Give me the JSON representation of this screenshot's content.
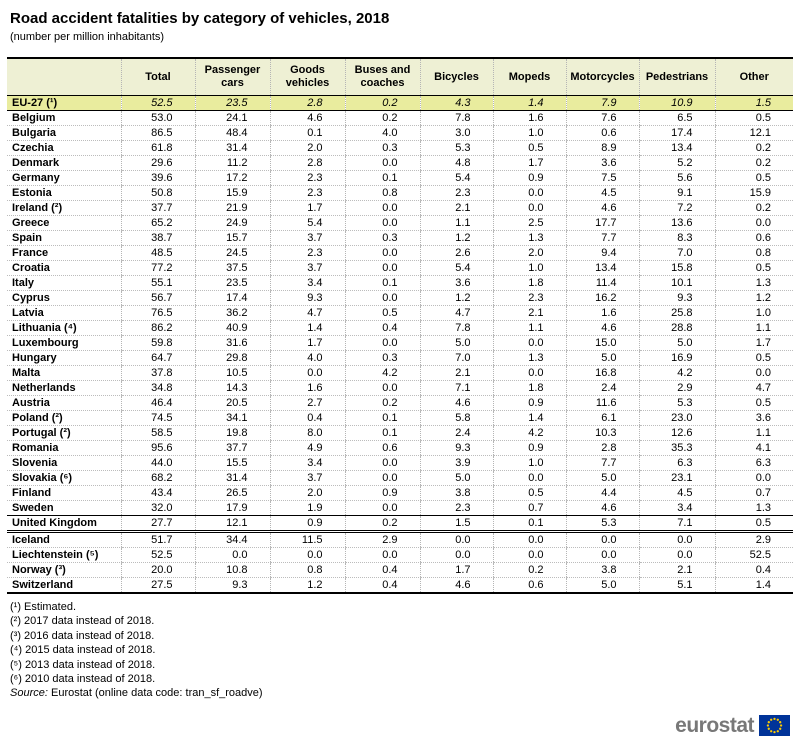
{
  "title": "Road accident fatalities by category of vehicles, 2018",
  "subtitle": "(number per million inhabitants)",
  "chart_data": {
    "type": "table",
    "title": "Road accident fatalities by category of vehicles, 2018",
    "unit": "number per million inhabitants",
    "columns": [
      "Total",
      "Passenger cars",
      "Goods vehicles",
      "Buses and coaches",
      "Bicycles",
      "Mopeds",
      "Motorcycles",
      "Pedestrians",
      "Other"
    ],
    "rows": [
      {
        "name": "EU-27 (¹)",
        "group": "eu27",
        "values": [
          "52.5",
          "23.5",
          "2.8",
          "0.2",
          "4.3",
          "1.4",
          "7.9",
          "10.9",
          "1.5"
        ]
      },
      {
        "name": "Belgium",
        "group": "member",
        "values": [
          "53.0",
          "24.1",
          "4.6",
          "0.2",
          "7.8",
          "1.6",
          "7.6",
          "6.5",
          "0.5"
        ]
      },
      {
        "name": "Bulgaria",
        "group": "member",
        "values": [
          "86.5",
          "48.4",
          "0.1",
          "4.0",
          "3.0",
          "1.0",
          "0.6",
          "17.4",
          "12.1"
        ]
      },
      {
        "name": "Czechia",
        "group": "member",
        "values": [
          "61.8",
          "31.4",
          "2.0",
          "0.3",
          "5.3",
          "0.5",
          "8.9",
          "13.4",
          "0.2"
        ]
      },
      {
        "name": "Denmark",
        "group": "member",
        "values": [
          "29.6",
          "11.2",
          "2.8",
          "0.0",
          "4.8",
          "1.7",
          "3.6",
          "5.2",
          "0.2"
        ]
      },
      {
        "name": "Germany",
        "group": "member",
        "values": [
          "39.6",
          "17.2",
          "2.3",
          "0.1",
          "5.4",
          "0.9",
          "7.5",
          "5.6",
          "0.5"
        ]
      },
      {
        "name": "Estonia",
        "group": "member",
        "values": [
          "50.8",
          "15.9",
          "2.3",
          "0.8",
          "2.3",
          "0.0",
          "4.5",
          "9.1",
          "15.9"
        ]
      },
      {
        "name": "Ireland (²)",
        "group": "member",
        "values": [
          "37.7",
          "21.9",
          "1.7",
          "0.0",
          "2.1",
          "0.0",
          "4.6",
          "7.2",
          "0.2"
        ]
      },
      {
        "name": "Greece",
        "group": "member",
        "values": [
          "65.2",
          "24.9",
          "5.4",
          "0.0",
          "1.1",
          "2.5",
          "17.7",
          "13.6",
          "0.0"
        ]
      },
      {
        "name": "Spain",
        "group": "member",
        "values": [
          "38.7",
          "15.7",
          "3.7",
          "0.3",
          "1.2",
          "1.3",
          "7.7",
          "8.3",
          "0.6"
        ]
      },
      {
        "name": "France",
        "group": "member",
        "values": [
          "48.5",
          "24.5",
          "2.3",
          "0.0",
          "2.6",
          "2.0",
          "9.4",
          "7.0",
          "0.8"
        ]
      },
      {
        "name": "Croatia",
        "group": "member",
        "values": [
          "77.2",
          "37.5",
          "3.7",
          "0.0",
          "5.4",
          "1.0",
          "13.4",
          "15.8",
          "0.5"
        ]
      },
      {
        "name": "Italy",
        "group": "member",
        "values": [
          "55.1",
          "23.5",
          "3.4",
          "0.1",
          "3.6",
          "1.8",
          "11.4",
          "10.1",
          "1.3"
        ]
      },
      {
        "name": "Cyprus",
        "group": "member",
        "values": [
          "56.7",
          "17.4",
          "9.3",
          "0.0",
          "1.2",
          "2.3",
          "16.2",
          "9.3",
          "1.2"
        ]
      },
      {
        "name": "Latvia",
        "group": "member",
        "values": [
          "76.5",
          "36.2",
          "4.7",
          "0.5",
          "4.7",
          "2.1",
          "1.6",
          "25.8",
          "1.0"
        ]
      },
      {
        "name": "Lithuania (⁴)",
        "group": "member",
        "values": [
          "86.2",
          "40.9",
          "1.4",
          "0.4",
          "7.8",
          "1.1",
          "4.6",
          "28.8",
          "1.1"
        ]
      },
      {
        "name": "Luxembourg",
        "group": "member",
        "values": [
          "59.8",
          "31.6",
          "1.7",
          "0.0",
          "5.0",
          "0.0",
          "15.0",
          "5.0",
          "1.7"
        ]
      },
      {
        "name": "Hungary",
        "group": "member",
        "values": [
          "64.7",
          "29.8",
          "4.0",
          "0.3",
          "7.0",
          "1.3",
          "5.0",
          "16.9",
          "0.5"
        ]
      },
      {
        "name": "Malta",
        "group": "member",
        "values": [
          "37.8",
          "10.5",
          "0.0",
          "4.2",
          "2.1",
          "0.0",
          "16.8",
          "4.2",
          "0.0"
        ]
      },
      {
        "name": "Netherlands",
        "group": "member",
        "values": [
          "34.8",
          "14.3",
          "1.6",
          "0.0",
          "7.1",
          "1.8",
          "2.4",
          "2.9",
          "4.7"
        ]
      },
      {
        "name": "Austria",
        "group": "member",
        "values": [
          "46.4",
          "20.5",
          "2.7",
          "0.2",
          "4.6",
          "0.9",
          "11.6",
          "5.3",
          "0.5"
        ]
      },
      {
        "name": "Poland (²)",
        "group": "member",
        "values": [
          "74.5",
          "34.1",
          "0.4",
          "0.1",
          "5.8",
          "1.4",
          "6.1",
          "23.0",
          "3.6"
        ]
      },
      {
        "name": "Portugal (²)",
        "group": "member",
        "values": [
          "58.5",
          "19.8",
          "8.0",
          "0.1",
          "2.4",
          "4.2",
          "10.3",
          "12.6",
          "1.1"
        ]
      },
      {
        "name": "Romania",
        "group": "member",
        "values": [
          "95.6",
          "37.7",
          "4.9",
          "0.6",
          "9.3",
          "0.9",
          "2.8",
          "35.3",
          "4.1"
        ]
      },
      {
        "name": "Slovenia",
        "group": "member",
        "values": [
          "44.0",
          "15.5",
          "3.4",
          "0.0",
          "3.9",
          "1.0",
          "7.7",
          "6.3",
          "6.3"
        ]
      },
      {
        "name": "Slovakia (⁶)",
        "group": "member",
        "values": [
          "68.2",
          "31.4",
          "3.7",
          "0.0",
          "5.0",
          "0.0",
          "5.0",
          "23.1",
          "0.0"
        ]
      },
      {
        "name": "Finland",
        "group": "member",
        "values": [
          "43.4",
          "26.5",
          "2.0",
          "0.9",
          "3.8",
          "0.5",
          "4.4",
          "4.5",
          "0.7"
        ]
      },
      {
        "name": "Sweden",
        "group": "member",
        "values": [
          "32.0",
          "17.9",
          "1.9",
          "0.0",
          "2.3",
          "0.7",
          "4.6",
          "3.4",
          "1.3"
        ]
      },
      {
        "name": "United Kingdom",
        "group": "uk",
        "values": [
          "27.7",
          "12.1",
          "0.9",
          "0.2",
          "1.5",
          "0.1",
          "5.3",
          "7.1",
          "0.5"
        ]
      },
      {
        "name": "Iceland",
        "group": "efta",
        "values": [
          "51.7",
          "34.4",
          "11.5",
          "2.9",
          "0.0",
          "0.0",
          "0.0",
          "0.0",
          "2.9"
        ]
      },
      {
        "name": "Liechtenstein (⁵)",
        "group": "efta",
        "values": [
          "52.5",
          "0.0",
          "0.0",
          "0.0",
          "0.0",
          "0.0",
          "0.0",
          "0.0",
          "52.5"
        ]
      },
      {
        "name": "Norway (³)",
        "group": "efta",
        "values": [
          "20.0",
          "10.8",
          "0.8",
          "0.4",
          "1.7",
          "0.2",
          "3.8",
          "2.1",
          "0.4"
        ]
      },
      {
        "name": "Switzerland",
        "group": "efta",
        "values": [
          "27.5",
          "9.3",
          "1.2",
          "0.4",
          "4.6",
          "0.6",
          "5.0",
          "5.1",
          "1.4"
        ]
      }
    ]
  },
  "footnotes": [
    "(¹) Estimated.",
    "(²) 2017 data instead of 2018.",
    "(³) 2016 data instead of 2018.",
    "(⁴) 2015 data instead of 2018.",
    "(⁵) 2013 data instead of 2018.",
    "(⁶) 2010 data instead of 2018."
  ],
  "source": {
    "prefix": "Source:",
    "text": "Eurostat (online data code: tran_sf_roadve)"
  },
  "logo": {
    "text": "eurostat"
  },
  "colors": {
    "header_bg": "#eef0d4",
    "eu_row_bg": "#e9ec9e",
    "logo_gray": "#787878",
    "flag_blue": "#003399",
    "star_yellow": "#ffcc00"
  }
}
